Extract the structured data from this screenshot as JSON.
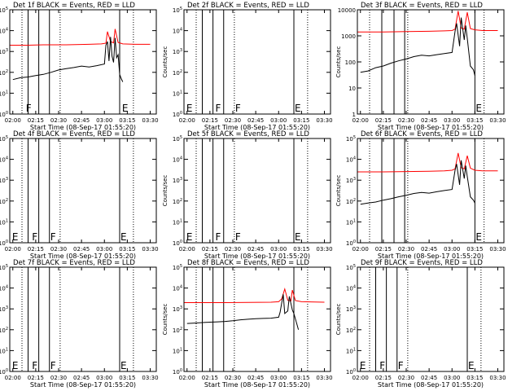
{
  "page": {
    "xlabel": "Start Time (08-Sep-17 01:55:20)",
    "ylabel": "Counts/sec",
    "x_ticks": [
      "02:00",
      "02:15",
      "02:30",
      "02:45",
      "03:00",
      "03:15",
      "03:30"
    ],
    "x_range": [
      "01:58",
      "03:34"
    ],
    "colors": {
      "events": "#000000",
      "lld": "#ff0000",
      "frame": "#000000"
    }
  },
  "chart_data": [
    {
      "type": "line",
      "title": "Det 1f  BLACK = Events, RED = LLD",
      "log_y": true,
      "ylim": [
        1,
        100000
      ],
      "y_ticks": [
        "10^0",
        "10^1",
        "10^2",
        "10^3",
        "10^4",
        "10^5"
      ],
      "vlines_solid": [
        "02:10",
        "02:17",
        "02:24",
        "03:10"
      ],
      "vlines_dotted": [
        "02:06",
        "02:31",
        "03:19"
      ],
      "markers": [
        {
          "label": "F",
          "x": "02:08"
        },
        {
          "label": "E",
          "x": "03:11"
        }
      ],
      "series": [
        {
          "role": "lld",
          "x": [
            "01:58",
            "02:10",
            "02:20",
            "02:35",
            "02:50",
            "02:58",
            "03:01",
            "03:02",
            "03:04",
            "03:06",
            "03:07",
            "03:09",
            "03:10",
            "03:12",
            "03:20",
            "03:30"
          ],
          "y": [
            2000,
            2000,
            2100,
            2100,
            2200,
            2300,
            2500,
            9000,
            3000,
            2600,
            12000,
            2700,
            2600,
            2300,
            2200,
            2200
          ]
        },
        {
          "role": "events",
          "x": [
            "02:00",
            "02:05",
            "02:10",
            "02:15",
            "02:20",
            "02:25",
            "02:30",
            "02:35",
            "02:40",
            "02:45",
            "02:50",
            "02:55",
            "03:00",
            "03:01",
            "03:02",
            "03:03",
            "03:04",
            "03:05",
            "03:06",
            "03:07",
            "03:08",
            "03:09",
            "03:10",
            "03:11",
            "03:12"
          ],
          "y": [
            45,
            55,
            60,
            70,
            80,
            100,
            130,
            150,
            170,
            200,
            180,
            210,
            250,
            2000,
            3000,
            350,
            5000,
            600,
            300,
            4500,
            500,
            700,
            80,
            50,
            35
          ]
        }
      ]
    },
    {
      "type": "line",
      "title": "Det 2f  BLACK = Events, RED = LLD",
      "log_y": true,
      "ylim": [
        1,
        100000
      ],
      "y_ticks": [
        "10^0",
        "10^1",
        "10^2",
        "10^3",
        "10^4",
        "10^5"
      ],
      "vlines_solid": [
        "02:10",
        "02:17",
        "02:24",
        "03:10"
      ],
      "vlines_dotted": [
        "02:06",
        "02:31",
        "03:19"
      ],
      "markers": [
        {
          "label": "E",
          "x": "01:59"
        },
        {
          "label": "F",
          "x": "02:18"
        },
        {
          "label": "F",
          "x": "02:31"
        },
        {
          "label": "E",
          "x": "03:10"
        }
      ],
      "series": []
    },
    {
      "type": "line",
      "title": "Det 3f  BLACK = Events, RED = LLD",
      "log_y": true,
      "ylim": [
        1,
        10000
      ],
      "y_ticks": [
        "1",
        "10",
        "100",
        "1000",
        "10000"
      ],
      "vlines_solid": [
        "02:14",
        "02:22",
        "02:29",
        "03:15"
      ],
      "vlines_dotted": [
        "02:06",
        "02:31",
        "03:21"
      ],
      "markers": [
        {
          "label": "E",
          "x": "03:15"
        }
      ],
      "series": [
        {
          "role": "lld",
          "x": [
            "01:58",
            "02:15",
            "02:30",
            "02:45",
            "02:55",
            "03:00",
            "03:02",
            "03:04",
            "03:06",
            "03:08",
            "03:10",
            "03:12",
            "03:15",
            "03:20",
            "03:30"
          ],
          "y": [
            1400,
            1400,
            1450,
            1500,
            1550,
            1600,
            1800,
            9000,
            2000,
            1800,
            8000,
            1900,
            1700,
            1600,
            1600
          ]
        },
        {
          "role": "events",
          "x": [
            "02:00",
            "02:05",
            "02:10",
            "02:15",
            "02:20",
            "02:25",
            "02:30",
            "02:35",
            "02:40",
            "02:45",
            "02:50",
            "02:55",
            "03:00",
            "03:02",
            "03:03",
            "03:05",
            "03:06",
            "03:08",
            "03:09",
            "03:10",
            "03:12",
            "03:14",
            "03:15"
          ],
          "y": [
            40,
            45,
            60,
            70,
            90,
            110,
            130,
            160,
            180,
            170,
            190,
            210,
            230,
            1500,
            3000,
            400,
            5000,
            700,
            2500,
            800,
            70,
            50,
            30
          ]
        }
      ]
    },
    {
      "type": "line",
      "title": "Det 4f  BLACK = Events, RED = LLD",
      "log_y": true,
      "ylim": [
        1,
        100000
      ],
      "y_ticks": [
        "10^0",
        "10^1",
        "10^2",
        "10^3",
        "10^4",
        "10^5"
      ],
      "vlines_solid": [
        "02:10",
        "02:17",
        "02:24",
        "03:10"
      ],
      "vlines_dotted": [
        "02:06",
        "02:31",
        "03:19"
      ],
      "markers": [
        {
          "label": "E",
          "x": "01:59"
        },
        {
          "label": "F",
          "x": "02:12"
        },
        {
          "label": "F",
          "x": "02:24"
        },
        {
          "label": "E",
          "x": "03:10"
        }
      ],
      "series": []
    },
    {
      "type": "line",
      "title": "Det 5f  BLACK = Events, RED = LLD",
      "log_y": true,
      "ylim": [
        1,
        100000
      ],
      "y_ticks": [
        "10^0",
        "10^1",
        "10^2",
        "10^3",
        "10^4",
        "10^5"
      ],
      "vlines_solid": [
        "02:10",
        "02:17",
        "02:24",
        "03:10"
      ],
      "vlines_dotted": [
        "02:06",
        "02:31",
        "03:19"
      ],
      "markers": [
        {
          "label": "E",
          "x": "01:59"
        },
        {
          "label": "F",
          "x": "02:18"
        },
        {
          "label": "F",
          "x": "02:31"
        },
        {
          "label": "E",
          "x": "03:10"
        }
      ],
      "series": []
    },
    {
      "type": "line",
      "title": "Det 6f  BLACK = Events, RED = LLD",
      "log_y": true,
      "ylim": [
        1,
        100000
      ],
      "y_ticks": [
        "10^0",
        "10^1",
        "10^2",
        "10^3",
        "10^4",
        "10^5"
      ],
      "vlines_solid": [
        "02:14",
        "02:22",
        "02:29",
        "03:15"
      ],
      "vlines_dotted": [
        "02:06",
        "02:31",
        "03:21"
      ],
      "markers": [
        {
          "label": "E",
          "x": "03:15"
        }
      ],
      "series": [
        {
          "role": "lld",
          "x": [
            "01:58",
            "02:15",
            "02:30",
            "02:45",
            "02:55",
            "03:00",
            "03:02",
            "03:04",
            "03:06",
            "03:08",
            "03:10",
            "03:12",
            "03:15",
            "03:20",
            "03:30"
          ],
          "y": [
            2500,
            2500,
            2600,
            2700,
            2800,
            3000,
            3500,
            20000,
            4000,
            3500,
            15000,
            3800,
            3000,
            2800,
            2800
          ]
        },
        {
          "role": "events",
          "x": [
            "02:00",
            "02:05",
            "02:10",
            "02:15",
            "02:20",
            "02:25",
            "02:30",
            "02:35",
            "02:40",
            "02:45",
            "02:50",
            "02:55",
            "03:00",
            "03:02",
            "03:03",
            "03:05",
            "03:06",
            "03:08",
            "03:09",
            "03:10",
            "03:12",
            "03:14",
            "03:15"
          ],
          "y": [
            70,
            80,
            90,
            110,
            130,
            160,
            190,
            230,
            260,
            240,
            280,
            320,
            360,
            3000,
            6000,
            600,
            9000,
            1200,
            5000,
            1500,
            160,
            110,
            80
          ]
        }
      ]
    },
    {
      "type": "line",
      "title": "Det 7f  BLACK = Events, RED = LLD",
      "log_y": true,
      "ylim": [
        1,
        100000
      ],
      "y_ticks": [
        "10^0",
        "10^1",
        "10^2",
        "10^3",
        "10^4",
        "10^5"
      ],
      "vlines_solid": [
        "02:10",
        "02:17",
        "02:24",
        "03:10"
      ],
      "vlines_dotted": [
        "02:06",
        "02:31",
        "03:19"
      ],
      "markers": [
        {
          "label": "E",
          "x": "01:59"
        },
        {
          "label": "F",
          "x": "02:12"
        },
        {
          "label": "F",
          "x": "02:24"
        },
        {
          "label": "E",
          "x": "03:10"
        }
      ],
      "series": []
    },
    {
      "type": "line",
      "title": "Det 8f  BLACK = Events, RED = LLD",
      "log_y": true,
      "ylim": [
        1,
        100000
      ],
      "y_ticks": [
        "10^0",
        "10^1",
        "10^2",
        "10^3",
        "10^4",
        "10^5"
      ],
      "vlines_solid": [
        "02:10",
        "02:17",
        "02:24",
        "03:10"
      ],
      "vlines_dotted": [
        "02:06",
        "02:31",
        "03:19"
      ],
      "markers": [],
      "series": [
        {
          "role": "lld",
          "x": [
            "01:58",
            "02:10",
            "02:25",
            "02:40",
            "02:55",
            "03:00",
            "03:02",
            "03:04",
            "03:06",
            "03:08",
            "03:09",
            "03:11",
            "03:15",
            "03:30"
          ],
          "y": [
            2000,
            2000,
            2000,
            2050,
            2100,
            2200,
            3000,
            9000,
            2600,
            2400,
            8000,
            2500,
            2200,
            2100
          ]
        },
        {
          "role": "events",
          "x": [
            "02:00",
            "02:05",
            "02:10",
            "02:15",
            "02:20",
            "02:25",
            "02:30",
            "02:35",
            "02:40",
            "02:45",
            "02:50",
            "02:55",
            "03:00",
            "03:01",
            "03:03",
            "03:04",
            "03:06",
            "03:07",
            "03:09",
            "03:10",
            "03:12",
            "03:13"
          ],
          "y": [
            200,
            210,
            220,
            230,
            240,
            250,
            270,
            300,
            320,
            340,
            350,
            360,
            400,
            700,
            5000,
            600,
            800,
            4000,
            900,
            600,
            180,
            100
          ]
        }
      ]
    },
    {
      "type": "line",
      "title": "Det 9f  BLACK = Events, RED = LLD",
      "log_y": true,
      "ylim": [
        1,
        100000
      ],
      "y_ticks": [
        "10^0",
        "10^1",
        "10^2",
        "10^3",
        "10^4",
        "10^5"
      ],
      "vlines_solid": [
        "02:10",
        "02:17",
        "02:24",
        "03:10"
      ],
      "vlines_dotted": [
        "02:06",
        "02:31",
        "03:19"
      ],
      "markers": [
        {
          "label": "E",
          "x": "01:59"
        },
        {
          "label": "F",
          "x": "02:12"
        },
        {
          "label": "F",
          "x": "02:24"
        },
        {
          "label": "E",
          "x": "03:10"
        }
      ],
      "series": []
    }
  ]
}
